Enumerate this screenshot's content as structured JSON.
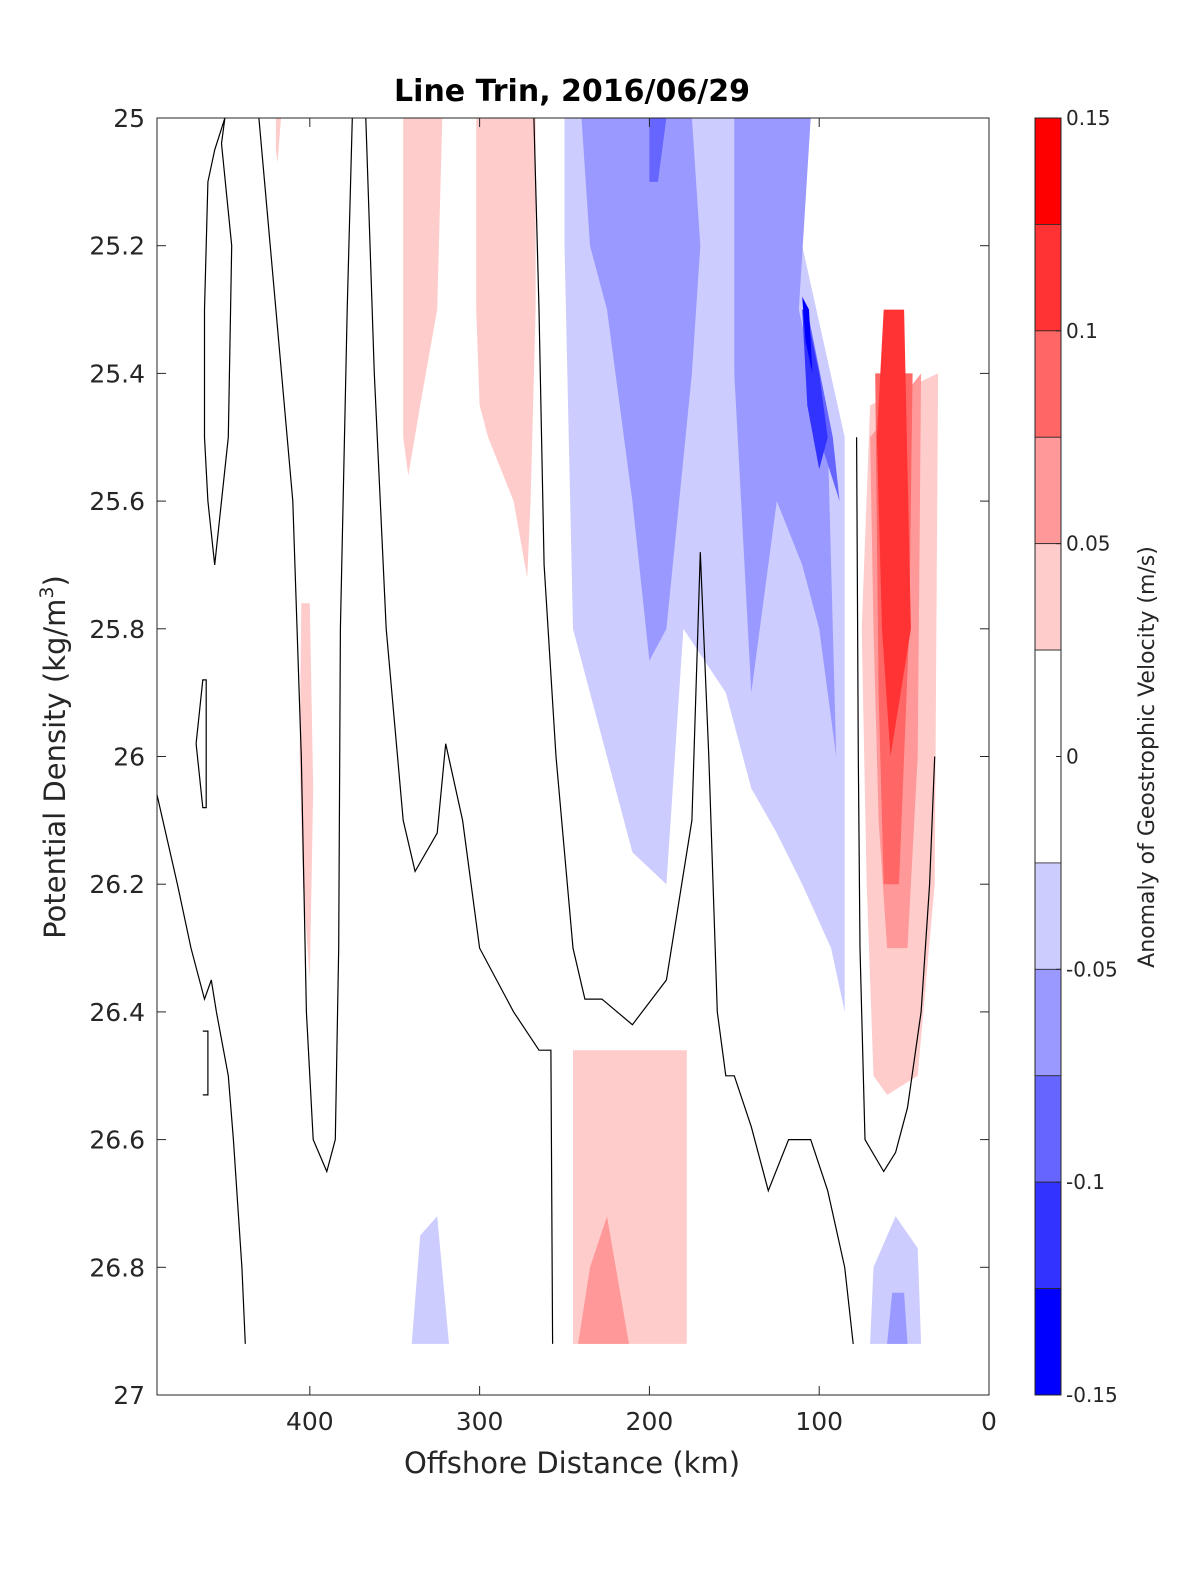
{
  "chart_data": {
    "type": "contour",
    "title": "Line Trin, 2016/06/29",
    "xlabel": "Offshore Distance (km)",
    "ylabel_main": "Potential Density (kg/m",
    "ylabel_sup": "3",
    "ylabel_close": ")",
    "x_reversed": true,
    "y_reversed": true,
    "xlim": [
      490,
      0
    ],
    "ylim": [
      25,
      27
    ],
    "xticks": [
      400,
      300,
      200,
      100,
      0
    ],
    "xtick_labels": [
      "400",
      "300",
      "200",
      "100",
      "0"
    ],
    "yticks": [
      25,
      25.2,
      25.4,
      25.6,
      25.8,
      26,
      26.2,
      26.4,
      26.6,
      26.8,
      27
    ],
    "ytick_labels": [
      "25",
      "25.2",
      "25.4",
      "25.6",
      "25.8",
      "26",
      "26.2",
      "26.4",
      "26.6",
      "26.8",
      "27"
    ],
    "colorbar": {
      "label": "Anomaly of Geostrophic Velocity (m/s)",
      "limits": [
        -0.15,
        0.15
      ],
      "ticks": [
        -0.15,
        -0.1,
        -0.05,
        0,
        0.05,
        0.1,
        0.15
      ],
      "tick_labels": [
        "-0.15",
        "-0.1",
        "-0.05",
        "0",
        "0.05",
        "0.1",
        "0.15"
      ],
      "levels": [
        {
          "from": 0.125,
          "to": 0.15,
          "color": "#ff0000"
        },
        {
          "from": 0.1,
          "to": 0.125,
          "color": "#ff3333"
        },
        {
          "from": 0.075,
          "to": 0.1,
          "color": "#ff6666"
        },
        {
          "from": 0.05,
          "to": 0.075,
          "color": "#ff9999"
        },
        {
          "from": 0.025,
          "to": 0.05,
          "color": "#ffcccc"
        },
        {
          "from": -0.025,
          "to": 0.025,
          "color": "#ffffff"
        },
        {
          "from": -0.05,
          "to": -0.025,
          "color": "#ccccff"
        },
        {
          "from": -0.075,
          "to": -0.05,
          "color": "#9999ff"
        },
        {
          "from": -0.1,
          "to": -0.075,
          "color": "#6666ff"
        },
        {
          "from": -0.125,
          "to": -0.1,
          "color": "#3333ff"
        },
        {
          "from": -0.15,
          "to": -0.125,
          "color": "#0000ff"
        }
      ]
    },
    "filled_regions": [
      {
        "level": 0.0375,
        "points": [
          [
            345,
            25
          ],
          [
            322,
            25
          ],
          [
            325,
            25.3
          ],
          [
            335,
            25.45
          ],
          [
            342,
            25.56
          ],
          [
            345,
            25.5
          ]
        ]
      },
      {
        "level": 0.0375,
        "points": [
          [
            302,
            25
          ],
          [
            267,
            25
          ],
          [
            267,
            25.3
          ],
          [
            270,
            25.6
          ],
          [
            272,
            25.72
          ],
          [
            280,
            25.6
          ],
          [
            295,
            25.5
          ],
          [
            300,
            25.45
          ],
          [
            302,
            25.3
          ]
        ]
      },
      {
        "level": 0.0375,
        "points": [
          [
            420,
            25
          ],
          [
            417,
            25
          ],
          [
            419,
            25.07
          ],
          [
            420,
            25.05
          ]
        ]
      },
      {
        "level": 0.0375,
        "points": [
          [
            405,
            25.76
          ],
          [
            400,
            25.76
          ],
          [
            398,
            26.05
          ],
          [
            400,
            26.35
          ],
          [
            404,
            26.2
          ],
          [
            406,
            26
          ]
        ]
      },
      {
        "level": 0.0375,
        "points": [
          [
            245,
            26.46
          ],
          [
            178,
            26.46
          ],
          [
            178,
            26.92
          ],
          [
            245,
            26.92
          ],
          [
            245,
            26.6
          ]
        ]
      },
      {
        "level": 0.0375,
        "points": [
          [
            70,
            25.45
          ],
          [
            30,
            25.4
          ],
          [
            32,
            26.2
          ],
          [
            42,
            26.5
          ],
          [
            60,
            26.53
          ],
          [
            68,
            26.5
          ],
          [
            72,
            26.2
          ],
          [
            75,
            25.8
          ]
        ]
      },
      {
        "level": 0.0625,
        "points": [
          [
            242,
            26.92
          ],
          [
            212,
            26.92
          ],
          [
            225,
            26.72
          ],
          [
            235,
            26.8
          ]
        ]
      },
      {
        "level": 0.0625,
        "points": [
          [
            70,
            25.5
          ],
          [
            40,
            25.4
          ],
          [
            42,
            26
          ],
          [
            48,
            26.3
          ],
          [
            60,
            26.3
          ],
          [
            65,
            26.1
          ],
          [
            68,
            25.8
          ]
        ]
      },
      {
        "level": 0.0875,
        "points": [
          [
            67,
            25.4
          ],
          [
            45,
            25.4
          ],
          [
            47,
            25.8
          ],
          [
            53,
            26.2
          ],
          [
            62,
            26.2
          ],
          [
            65,
            25.9
          ]
        ]
      },
      {
        "level": 0.1125,
        "points": [
          [
            62,
            25.3
          ],
          [
            50,
            25.3
          ],
          [
            46,
            25.8
          ],
          [
            58,
            26
          ],
          [
            63,
            25.8
          ],
          [
            66,
            25.5
          ]
        ]
      },
      {
        "level": -0.0375,
        "points": [
          [
            250,
            25
          ],
          [
            110,
            25
          ],
          [
            110,
            25.2
          ],
          [
            85,
            25.5
          ],
          [
            85,
            26.4
          ],
          [
            93,
            26.3
          ],
          [
            110,
            26.2
          ],
          [
            125,
            26.12
          ],
          [
            140,
            26.05
          ],
          [
            155,
            25.9
          ],
          [
            180,
            25.8
          ],
          [
            190,
            26.2
          ],
          [
            210,
            26.15
          ],
          [
            245,
            25.8
          ],
          [
            250,
            25.2
          ]
        ]
      },
      {
        "level": -0.0375,
        "points": [
          [
            340,
            26.92
          ],
          [
            318,
            26.92
          ],
          [
            325,
            26.72
          ],
          [
            335,
            26.75
          ]
        ]
      },
      {
        "level": -0.0375,
        "points": [
          [
            70,
            26.92
          ],
          [
            40,
            26.92
          ],
          [
            42,
            26.77
          ],
          [
            55,
            26.72
          ],
          [
            68,
            26.8
          ]
        ]
      },
      {
        "level": -0.0625,
        "points": [
          [
            240,
            25
          ],
          [
            175,
            25
          ],
          [
            170,
            25.2
          ],
          [
            175,
            25.4
          ],
          [
            190,
            25.8
          ],
          [
            200,
            25.85
          ],
          [
            210,
            25.6
          ],
          [
            225,
            25.3
          ],
          [
            235,
            25.2
          ]
        ]
      },
      {
        "level": -0.0625,
        "points": [
          [
            150,
            25
          ],
          [
            105,
            25
          ],
          [
            112,
            25.3
          ],
          [
            95,
            25.5
          ],
          [
            90,
            26
          ],
          [
            100,
            25.8
          ],
          [
            110,
            25.7
          ],
          [
            125,
            25.6
          ],
          [
            140,
            25.9
          ],
          [
            150,
            25.4
          ]
        ]
      },
      {
        "level": -0.0625,
        "points": [
          [
            60,
            26.92
          ],
          [
            48,
            26.92
          ],
          [
            50,
            26.84
          ],
          [
            57,
            26.84
          ]
        ]
      },
      {
        "level": -0.0875,
        "points": [
          [
            200,
            25
          ],
          [
            190,
            25
          ],
          [
            195,
            25.1
          ],
          [
            200,
            25.1
          ]
        ]
      },
      {
        "level": -0.0875,
        "points": [
          [
            107,
            25.3
          ],
          [
            92,
            25.5
          ],
          [
            88,
            25.6
          ],
          [
            100,
            25.5
          ]
        ]
      },
      {
        "level": -0.1125,
        "points": [
          [
            110,
            25.3
          ],
          [
            108,
            25.3
          ],
          [
            100,
            25.4
          ],
          [
            95,
            25.5
          ],
          [
            100,
            25.55
          ],
          [
            107,
            25.45
          ]
        ]
      },
      {
        "level": -0.1375,
        "points": [
          [
            110,
            25.28
          ],
          [
            106,
            25.3
          ],
          [
            104,
            25.4
          ],
          [
            108,
            25.35
          ]
        ]
      }
    ],
    "zero_contours": [
      [
        [
          462,
          25.3
        ],
        [
          460,
          25.1
        ],
        [
          456,
          25.05
        ],
        [
          450,
          25
        ],
        [
          452,
          25.04
        ],
        [
          446,
          25.2
        ],
        [
          448,
          25.5
        ],
        [
          456,
          25.7
        ],
        [
          460,
          25.6
        ],
        [
          462,
          25.5
        ],
        [
          462,
          25.3
        ]
      ],
      [
        [
          467,
          25.98
        ],
        [
          463,
          25.88
        ],
        [
          461,
          25.88
        ],
        [
          461,
          26.08
        ],
        [
          463,
          26.08
        ],
        [
          467,
          25.98
        ]
      ],
      [
        [
          463,
          26.43
        ],
        [
          460,
          26.43
        ],
        [
          460,
          26.53
        ],
        [
          463,
          26.53
        ]
      ],
      [
        [
          430,
          25
        ],
        [
          420,
          25.3
        ],
        [
          410,
          25.6
        ],
        [
          405,
          26
        ],
        [
          402,
          26.4
        ],
        [
          398,
          26.6
        ],
        [
          390,
          26.65
        ],
        [
          385,
          26.6
        ],
        [
          383,
          26.3
        ],
        [
          382,
          25.8
        ],
        [
          378,
          25.3
        ],
        [
          375,
          25
        ]
      ],
      [
        [
          490,
          26.06
        ],
        [
          478,
          26.2
        ],
        [
          470,
          26.3
        ],
        [
          462,
          26.38
        ],
        [
          458,
          26.35
        ],
        [
          455,
          26.4
        ],
        [
          448,
          26.5
        ],
        [
          445,
          26.6
        ],
        [
          440,
          26.8
        ],
        [
          438,
          26.92
        ]
      ],
      [
        [
          367,
          25
        ],
        [
          362,
          25.4
        ],
        [
          355,
          25.8
        ],
        [
          345,
          26.1
        ],
        [
          338,
          26.18
        ],
        [
          325,
          26.12
        ],
        [
          320,
          25.98
        ],
        [
          310,
          26.1
        ],
        [
          300,
          26.3
        ],
        [
          280,
          26.4
        ],
        [
          265,
          26.46
        ],
        [
          258,
          26.46
        ],
        [
          257,
          26.92
        ]
      ],
      [
        [
          268,
          25
        ],
        [
          265,
          25.3
        ],
        [
          262,
          25.7
        ],
        [
          255,
          26
        ],
        [
          245,
          26.3
        ],
        [
          238,
          26.38
        ],
        [
          228,
          26.38
        ],
        [
          210,
          26.42
        ],
        [
          190,
          26.35
        ],
        [
          175,
          26.1
        ],
        [
          170,
          25.68
        ],
        [
          165,
          26
        ],
        [
          160,
          26.4
        ],
        [
          155,
          26.5
        ],
        [
          150,
          26.5
        ],
        [
          140,
          26.58
        ],
        [
          130,
          26.68
        ],
        [
          118,
          26.6
        ],
        [
          105,
          26.6
        ],
        [
          95,
          26.68
        ],
        [
          85,
          26.8
        ],
        [
          80,
          26.92
        ]
      ],
      [
        [
          78,
          25.5
        ],
        [
          77,
          26
        ],
        [
          76,
          26.3
        ],
        [
          73,
          26.6
        ],
        [
          62,
          26.65
        ],
        [
          55,
          26.62
        ],
        [
          48,
          26.55
        ],
        [
          40,
          26.4
        ],
        [
          35,
          26.2
        ],
        [
          32,
          26
        ]
      ]
    ]
  }
}
